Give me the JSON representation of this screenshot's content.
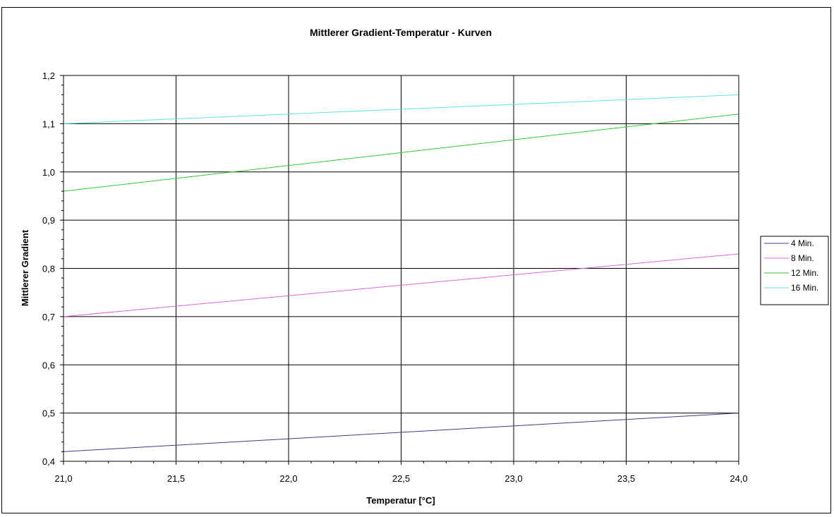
{
  "chart_data": {
    "type": "line",
    "title": "Mittlerer Gradient-Temperatur - Kurven",
    "xlabel": "Temperatur [°C]",
    "ylabel": "Mittlerer Gradient",
    "xlim": [
      21.0,
      24.0
    ],
    "ylim": [
      0.4,
      1.2
    ],
    "x_ticks": [
      "21,0",
      "21,5",
      "22,0",
      "22,5",
      "23,0",
      "23,5",
      "24,0"
    ],
    "y_ticks": [
      "0,4",
      "0,5",
      "0,6",
      "0,7",
      "0,8",
      "0,9",
      "1,0",
      "1,1",
      "1,2"
    ],
    "grid": true,
    "legend_position": "right",
    "series": [
      {
        "name": "4 Min.",
        "color": "#3b3b8f",
        "x": [
          21.0,
          24.0
        ],
        "y": [
          0.42,
          0.5
        ]
      },
      {
        "name": "8 Min.",
        "color": "#e066e0",
        "x": [
          21.0,
          24.0
        ],
        "y": [
          0.7,
          0.83
        ]
      },
      {
        "name": "12 Min.",
        "color": "#33cc33",
        "x": [
          21.0,
          24.0
        ],
        "y": [
          0.96,
          1.12
        ]
      },
      {
        "name": "16 Min.",
        "color": "#66e0e6",
        "x": [
          21.0,
          24.0
        ],
        "y": [
          1.1,
          1.16
        ]
      }
    ]
  }
}
